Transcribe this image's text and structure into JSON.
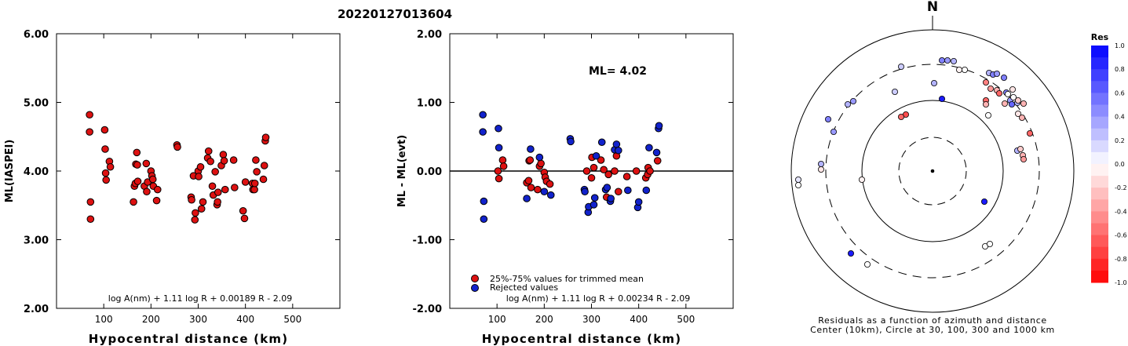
{
  "title": "20220127013604",
  "chart_data": [
    {
      "type": "scatter",
      "ylabel": "ML(IASPEI)",
      "xlabel": "Hypocentral distance (km)",
      "x_ticks": [
        "100",
        "200",
        "300",
        "400",
        "500"
      ],
      "y_ticks": [
        "6.00",
        "5.00",
        "4.00",
        "3.00",
        "2.00"
      ],
      "xlim": [
        0,
        600
      ],
      "ylim": [
        2,
        6
      ],
      "formula": "log A(nm) + 1.11 log R + 0.00189 R - 2.09",
      "points": [
        [
          70,
          4.82
        ],
        [
          70,
          4.57
        ],
        [
          72,
          3.55
        ],
        [
          72,
          3.3
        ],
        [
          102,
          4.6
        ],
        [
          103,
          4.32
        ],
        [
          104,
          3.97
        ],
        [
          105,
          3.87
        ],
        [
          112,
          4.14
        ],
        [
          114,
          4.06
        ],
        [
          163,
          3.55
        ],
        [
          165,
          3.78
        ],
        [
          167,
          3.82
        ],
        [
          168,
          4.1
        ],
        [
          170,
          4.27
        ],
        [
          171,
          4.09
        ],
        [
          172,
          3.85
        ],
        [
          186,
          3.78
        ],
        [
          190,
          4.11
        ],
        [
          191,
          3.7
        ],
        [
          193,
          3.84
        ],
        [
          200,
          4.0
        ],
        [
          202,
          3.93
        ],
        [
          204,
          3.88
        ],
        [
          205,
          3.78
        ],
        [
          212,
          3.57
        ],
        [
          214,
          3.73
        ],
        [
          255,
          4.38
        ],
        [
          256,
          4.35
        ],
        [
          285,
          3.62
        ],
        [
          286,
          3.58
        ],
        [
          290,
          3.93
        ],
        [
          293,
          3.29
        ],
        [
          294,
          3.39
        ],
        [
          300,
          4.0
        ],
        [
          301,
          3.92
        ],
        [
          305,
          4.06
        ],
        [
          307,
          3.45
        ],
        [
          310,
          3.55
        ],
        [
          320,
          4.19
        ],
        [
          322,
          4.29
        ],
        [
          326,
          4.14
        ],
        [
          330,
          3.78
        ],
        [
          332,
          3.65
        ],
        [
          336,
          3.99
        ],
        [
          340,
          3.51
        ],
        [
          341,
          3.55
        ],
        [
          342,
          3.69
        ],
        [
          349,
          4.08
        ],
        [
          353,
          4.24
        ],
        [
          355,
          4.15
        ],
        [
          357,
          3.73
        ],
        [
          375,
          4.16
        ],
        [
          377,
          3.76
        ],
        [
          395,
          3.42
        ],
        [
          398,
          3.31
        ],
        [
          400,
          3.84
        ],
        [
          415,
          3.82
        ],
        [
          416,
          3.73
        ],
        [
          419,
          3.73
        ],
        [
          420,
          3.82
        ],
        [
          422,
          4.16
        ],
        [
          424,
          3.99
        ],
        [
          438,
          3.88
        ],
        [
          440,
          4.08
        ],
        [
          442,
          4.44
        ],
        [
          443,
          4.49
        ]
      ]
    },
    {
      "type": "scatter",
      "ylabel": "ML - ML(evt)",
      "xlabel": "Hypocentral distance (km)",
      "x_ticks": [
        "100",
        "200",
        "300",
        "400",
        "500"
      ],
      "y_ticks": [
        "2.00",
        "1.00",
        "0.00",
        "-1.00",
        "-2.00"
      ],
      "xlim": [
        0,
        600
      ],
      "ylim": [
        -2,
        2
      ],
      "annotation": "ML= 4.02",
      "legend": [
        "25%-75% values for trimmed mean",
        "Rejected values"
      ],
      "formula": "log A(nm) + 1.11 log R + 0.00234 R - 2.09",
      "series": [
        {
          "color": "#dd1111",
          "points": [
            [
              102,
              0.0
            ],
            [
              104,
              -0.11
            ],
            [
              112,
              0.16
            ],
            [
              114,
              0.07
            ],
            [
              163,
              -0.17
            ],
            [
              167,
              -0.14
            ],
            [
              168,
              0.15
            ],
            [
              170,
              0.16
            ],
            [
              172,
              -0.24
            ],
            [
              186,
              -0.27
            ],
            [
              190,
              0.07
            ],
            [
              193,
              0.11
            ],
            [
              200,
              -0.02
            ],
            [
              202,
              -0.09
            ],
            [
              205,
              -0.15
            ],
            [
              212,
              -0.19
            ],
            [
              290,
              0.0
            ],
            [
              300,
              -0.1
            ],
            [
              301,
              0.2
            ],
            [
              305,
              0.05
            ],
            [
              320,
              0.16
            ],
            [
              326,
              0.02
            ],
            [
              332,
              -0.38
            ],
            [
              336,
              -0.05
            ],
            [
              349,
              0.0
            ],
            [
              353,
              0.22
            ],
            [
              357,
              -0.3
            ],
            [
              375,
              -0.08
            ],
            [
              395,
              0.0
            ],
            [
              415,
              -0.1
            ],
            [
              419,
              -0.05
            ],
            [
              420,
              0.05
            ],
            [
              424,
              0.0
            ],
            [
              440,
              0.15
            ]
          ]
        },
        {
          "color": "#1122cc",
          "points": [
            [
              70,
              0.82
            ],
            [
              70,
              0.57
            ],
            [
              72,
              -0.44
            ],
            [
              72,
              -0.7
            ],
            [
              103,
              0.62
            ],
            [
              104,
              0.34
            ],
            [
              163,
              -0.4
            ],
            [
              171,
              0.32
            ],
            [
              190,
              0.2
            ],
            [
              200,
              -0.3
            ],
            [
              214,
              -0.35
            ],
            [
              255,
              0.47
            ],
            [
              256,
              0.43
            ],
            [
              285,
              -0.27
            ],
            [
              286,
              -0.3
            ],
            [
              293,
              -0.6
            ],
            [
              294,
              -0.52
            ],
            [
              305,
              -0.49
            ],
            [
              307,
              -0.39
            ],
            [
              310,
              0.22
            ],
            [
              322,
              0.42
            ],
            [
              330,
              -0.27
            ],
            [
              333,
              -0.24
            ],
            [
              340,
              -0.44
            ],
            [
              341,
              -0.4
            ],
            [
              349,
              0.31
            ],
            [
              353,
              0.39
            ],
            [
              357,
              0.3
            ],
            [
              377,
              -0.28
            ],
            [
              398,
              -0.53
            ],
            [
              400,
              -0.45
            ],
            [
              416,
              -0.28
            ],
            [
              422,
              0.34
            ],
            [
              438,
              0.27
            ],
            [
              442,
              0.62
            ],
            [
              443,
              0.66
            ]
          ]
        }
      ]
    },
    {
      "type": "polar-scatter",
      "north_label": "N",
      "caption_line1": "Residuals as a function of azimuth and distance",
      "caption_line2": "Center (10km), Circle at 30, 100, 300 and 1000 km",
      "colorbar_title": "Res",
      "colorbar_ticks": [
        "1.0",
        "0.8",
        "0.6",
        "0.4",
        "0.2",
        "0.0",
        "-0.2",
        "-0.4",
        "-0.6",
        "-0.8",
        "-1.0"
      ],
      "points": [
        [
          1148,
          85,
          0.2
        ],
        [
          1200,
          77,
          0.5
        ],
        [
          1207,
          77,
          0.4
        ],
        [
          1215,
          78,
          0.3
        ],
        [
          1222,
          89,
          -0.05
        ],
        [
          1229,
          89,
          0.0
        ],
        [
          1190,
          106,
          0.3
        ],
        [
          1200,
          126,
          0.9
        ],
        [
          1140,
          117,
          0.2
        ],
        [
          1087,
          129,
          0.4
        ],
        [
          1080,
          133,
          0.3
        ],
        [
          1055,
          152,
          0.5
        ],
        [
          1062,
          168,
          0.4
        ],
        [
          1046,
          209,
          0.3
        ],
        [
          1046,
          216,
          -0.1
        ],
        [
          1017,
          229,
          0.1
        ],
        [
          1017,
          236,
          0.0
        ],
        [
          1098,
          229,
          -0.05
        ],
        [
          1154,
          146,
          -0.7
        ],
        [
          1148,
          149,
          -0.6
        ],
        [
          1254,
          257,
          0.9
        ],
        [
          1260,
          93,
          0.3
        ],
        [
          1265,
          95,
          0.5
        ],
        [
          1270,
          94,
          0.4
        ],
        [
          1256,
          105,
          -0.5
        ],
        [
          1262,
          113,
          -0.4
        ],
        [
          1270,
          115,
          -0.3
        ],
        [
          1273,
          119,
          -0.6
        ],
        [
          1256,
          128,
          -0.6
        ],
        [
          1256,
          133,
          -0.3
        ],
        [
          1259,
          147,
          0.0
        ],
        [
          1282,
          118,
          0.5
        ],
        [
          1287,
          128,
          0.4
        ],
        [
          1289,
          133,
          0.6
        ],
        [
          1296,
          131,
          0.3
        ],
        [
          1280,
          132,
          -0.3
        ],
        [
          1290,
          114,
          -0.1
        ],
        [
          1297,
          128,
          -0.2
        ],
        [
          1291,
          124,
          0.0
        ],
        [
          1304,
          132,
          -0.3
        ],
        [
          1297,
          145,
          -0.1
        ],
        [
          1302,
          150,
          -0.3
        ],
        [
          1312,
          170,
          -0.6
        ],
        [
          1296,
          192,
          0.3
        ],
        [
          1300,
          190,
          -0.2
        ],
        [
          1303,
          198,
          -0.3
        ],
        [
          1304,
          203,
          -0.4
        ],
        [
          1255,
          314,
          0.0
        ],
        [
          1261,
          311,
          0.0
        ],
        [
          1084,
          323,
          0.9
        ],
        [
          1105,
          337,
          0.0
        ],
        [
          1279,
          99,
          0.5
        ],
        [
          1284,
          120,
          0.0
        ]
      ]
    }
  ]
}
